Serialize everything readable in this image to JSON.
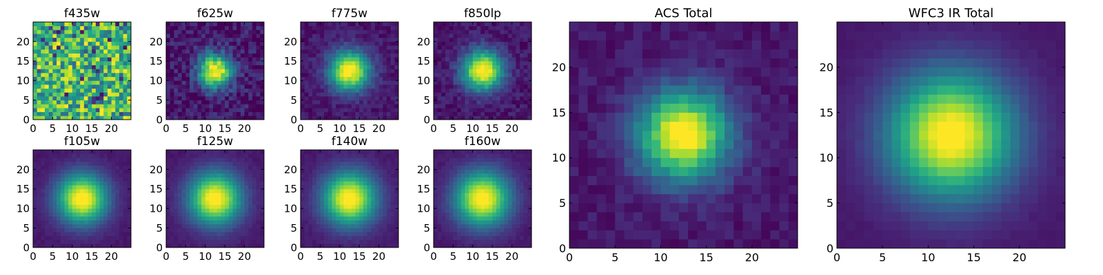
{
  "chart_data": [
    {
      "type": "heatmap",
      "title": "f435w",
      "pattern": "noise",
      "sigma": 0,
      "peak_x": 12,
      "peak_y": 12,
      "grid_size": 25,
      "xticks": [
        0,
        5,
        10,
        15,
        20
      ],
      "yticks": [
        0,
        5,
        10,
        15,
        20
      ],
      "xlim": [
        0,
        25
      ],
      "ylim": [
        0,
        25
      ],
      "colormap": "viridis"
    },
    {
      "type": "heatmap",
      "title": "f625w",
      "pattern": "gaussian",
      "sigma": 3.0,
      "noise": 0.12,
      "peak_x": 12,
      "peak_y": 12,
      "grid_size": 25,
      "xticks": [
        0,
        5,
        10,
        15,
        20
      ],
      "yticks": [
        0,
        5,
        10,
        15,
        20
      ],
      "xlim": [
        0,
        25
      ],
      "ylim": [
        0,
        25
      ],
      "colormap": "viridis"
    },
    {
      "type": "heatmap",
      "title": "f775w",
      "pattern": "gaussian",
      "sigma": 3.6,
      "noise": 0.06,
      "peak_x": 12,
      "peak_y": 12,
      "grid_size": 25,
      "xticks": [
        0,
        5,
        10,
        15,
        20
      ],
      "yticks": [
        0,
        5,
        10,
        15,
        20
      ],
      "xlim": [
        0,
        25
      ],
      "ylim": [
        0,
        25
      ],
      "colormap": "viridis"
    },
    {
      "type": "heatmap",
      "title": "f850lp",
      "pattern": "gaussian",
      "sigma": 3.6,
      "noise": 0.07,
      "peak_x": 12,
      "peak_y": 12,
      "grid_size": 25,
      "xticks": [
        0,
        5,
        10,
        15,
        20
      ],
      "yticks": [
        0,
        5,
        10,
        15,
        20
      ],
      "xlim": [
        0,
        25
      ],
      "ylim": [
        0,
        25
      ],
      "colormap": "viridis"
    },
    {
      "type": "heatmap",
      "title": "f105w",
      "pattern": "gaussian",
      "sigma": 4.5,
      "noise": 0.02,
      "peak_x": 12,
      "peak_y": 12,
      "grid_size": 25,
      "xticks": [
        0,
        5,
        10,
        15,
        20
      ],
      "yticks": [
        0,
        5,
        10,
        15,
        20
      ],
      "xlim": [
        0,
        25
      ],
      "ylim": [
        0,
        25
      ],
      "colormap": "viridis"
    },
    {
      "type": "heatmap",
      "title": "f125w",
      "pattern": "gaussian",
      "sigma": 4.7,
      "noise": 0.02,
      "peak_x": 12,
      "peak_y": 12,
      "grid_size": 25,
      "xticks": [
        0,
        5,
        10,
        15,
        20
      ],
      "yticks": [
        0,
        5,
        10,
        15,
        20
      ],
      "xlim": [
        0,
        25
      ],
      "ylim": [
        0,
        25
      ],
      "colormap": "viridis"
    },
    {
      "type": "heatmap",
      "title": "f140w",
      "pattern": "gaussian",
      "sigma": 4.8,
      "noise": 0.02,
      "peak_x": 12,
      "peak_y": 12,
      "grid_size": 25,
      "xticks": [
        0,
        5,
        10,
        15,
        20
      ],
      "yticks": [
        0,
        5,
        10,
        15,
        20
      ],
      "xlim": [
        0,
        25
      ],
      "ylim": [
        0,
        25
      ],
      "colormap": "viridis"
    },
    {
      "type": "heatmap",
      "title": "f160w",
      "pattern": "gaussian",
      "sigma": 4.9,
      "noise": 0.02,
      "peak_x": 12,
      "peak_y": 12,
      "grid_size": 25,
      "xticks": [
        0,
        5,
        10,
        15,
        20
      ],
      "yticks": [
        0,
        5,
        10,
        15,
        20
      ],
      "xlim": [
        0,
        25
      ],
      "ylim": [
        0,
        25
      ],
      "colormap": "viridis"
    },
    {
      "type": "heatmap",
      "title": "ACS Total",
      "pattern": "gaussian",
      "sigma": 3.5,
      "noise": 0.05,
      "peak_x": 12,
      "peak_y": 12,
      "grid_size": 25,
      "xticks": [
        0,
        5,
        10,
        15,
        20
      ],
      "yticks": [
        0,
        5,
        10,
        15,
        20
      ],
      "xlim": [
        0,
        25
      ],
      "ylim": [
        0,
        25
      ],
      "colormap": "viridis"
    },
    {
      "type": "heatmap",
      "title": "WFC3 IR Total",
      "pattern": "gaussian",
      "sigma": 4.8,
      "noise": 0.01,
      "peak_x": 12,
      "peak_y": 12,
      "grid_size": 25,
      "xticks": [
        0,
        5,
        10,
        15,
        20
      ],
      "yticks": [
        0,
        5,
        10,
        15,
        20
      ],
      "xlim": [
        0,
        25
      ],
      "ylim": [
        0,
        25
      ],
      "colormap": "viridis"
    }
  ]
}
